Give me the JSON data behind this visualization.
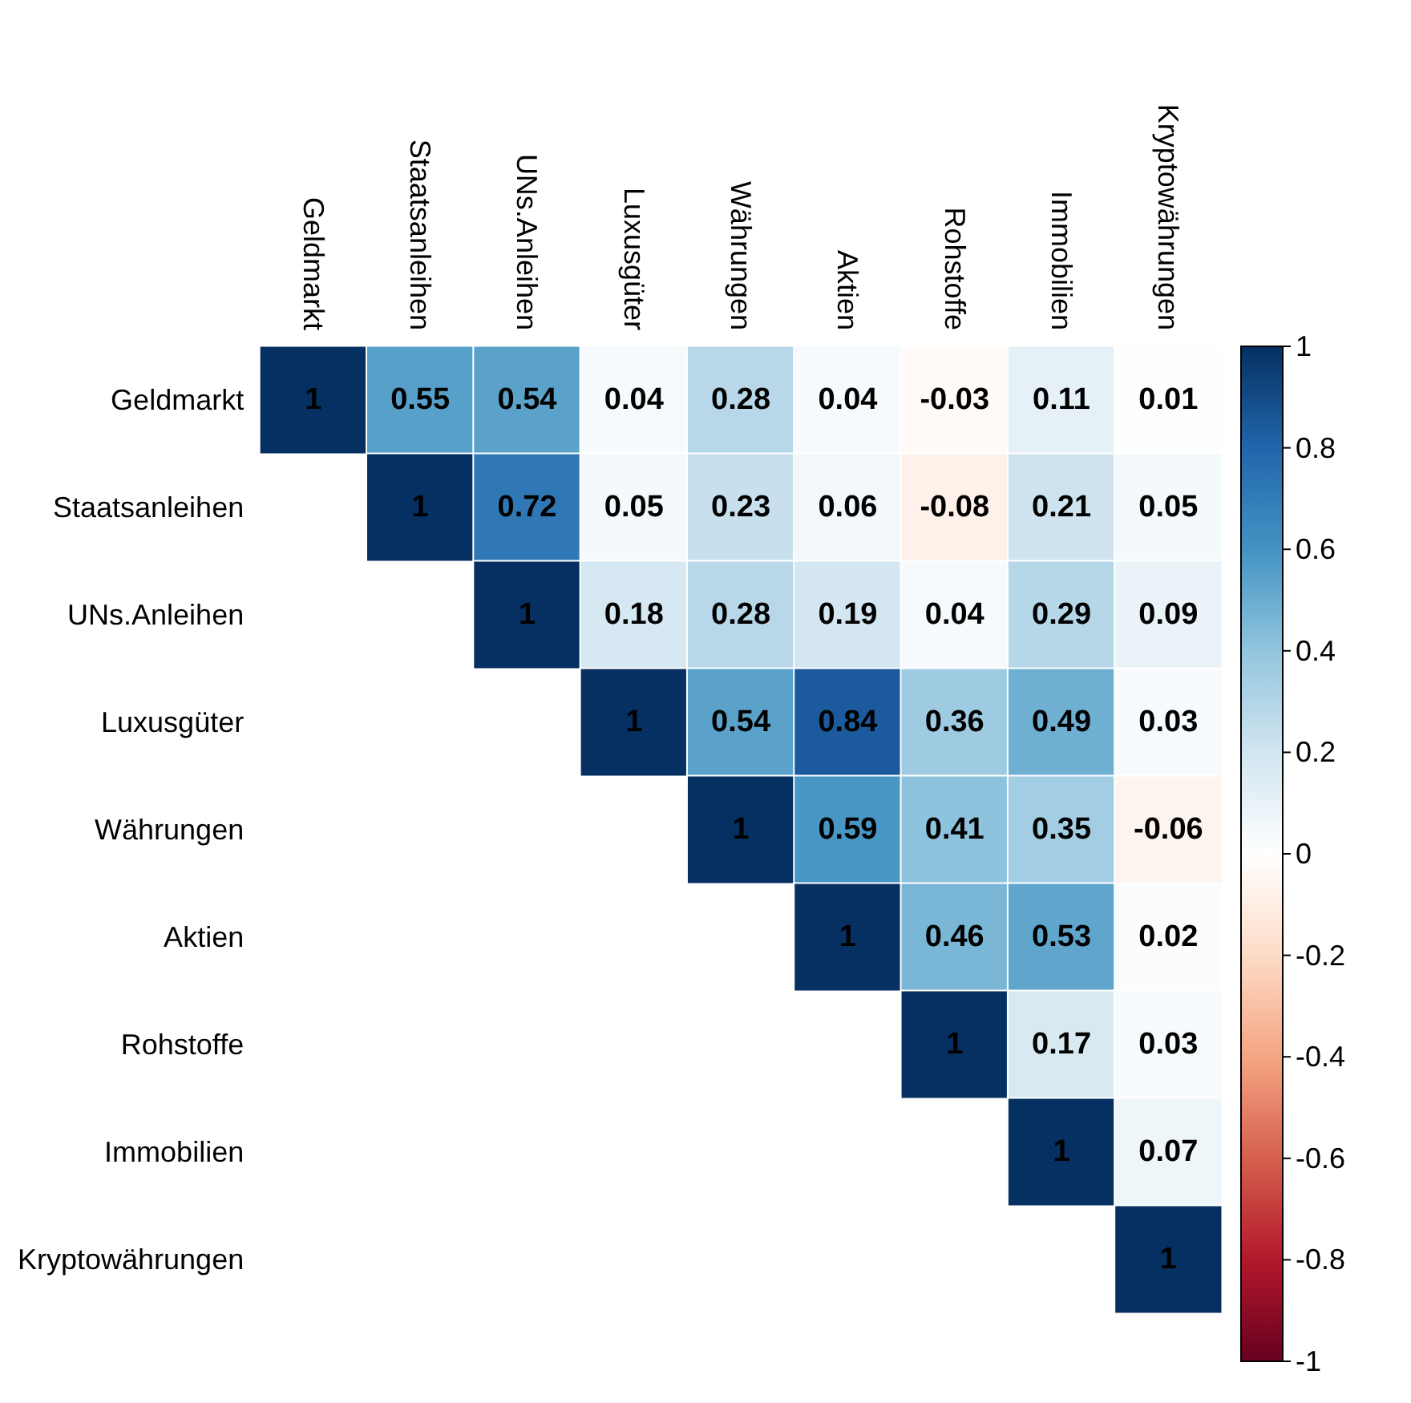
{
  "chart_data": {
    "type": "heatmap",
    "categories": [
      "Geldmarkt",
      "Staatsanleihen",
      "UNs.Anleihen",
      "Luxusgüter",
      "Währungen",
      "Aktien",
      "Rohstoffe",
      "Immobilien",
      "Kryptowährungen"
    ],
    "y_categories": [
      "Geldmarkt",
      "Staatsanleihen",
      "UNs.Anleihen",
      "Luxusgüter",
      "Währungen",
      "Aktien",
      "Rohstoffe",
      "Immobilien",
      "Kryptowährungen"
    ],
    "cells": [
      [
        1,
        0.55,
        0.54,
        0.04,
        0.28,
        0.04,
        -0.03,
        0.11,
        0.01
      ],
      [
        null,
        1,
        0.72,
        0.05,
        0.23,
        0.06,
        -0.08,
        0.21,
        0.05
      ],
      [
        null,
        null,
        1,
        0.18,
        0.28,
        0.19,
        0.04,
        0.29,
        0.09
      ],
      [
        null,
        null,
        null,
        1,
        0.54,
        0.84,
        0.36,
        0.49,
        0.03
      ],
      [
        null,
        null,
        null,
        null,
        1,
        0.59,
        0.41,
        0.35,
        -0.06
      ],
      [
        null,
        null,
        null,
        null,
        null,
        1,
        0.46,
        0.53,
        0.02
      ],
      [
        null,
        null,
        null,
        null,
        null,
        null,
        1,
        0.17,
        0.03
      ],
      [
        null,
        null,
        null,
        null,
        null,
        null,
        null,
        1,
        0.07
      ],
      [
        null,
        null,
        null,
        null,
        null,
        null,
        null,
        null,
        1
      ]
    ],
    "data_labels": true,
    "clim": [
      -1,
      1
    ],
    "cticks": [
      -1,
      -0.8,
      -0.6,
      -0.4,
      -0.2,
      0,
      0.2,
      0.4,
      0.6,
      0.8,
      1
    ]
  }
}
